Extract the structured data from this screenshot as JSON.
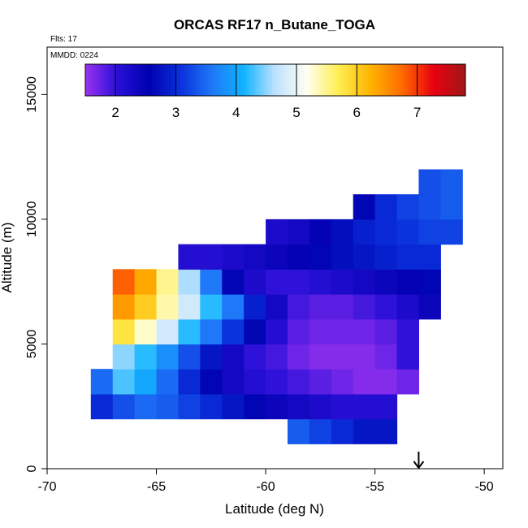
{
  "chart_data": {
    "type": "heatmap",
    "title": "ORCAS RF17 n_Butane_TOGA",
    "annotations": [
      "Flts: 17",
      "MMDD: 0224"
    ],
    "x_label": "Latitude (deg N)",
    "y_label": "Altitude (m)",
    "xlim": [
      -70,
      -49.15
    ],
    "ylim": [
      0,
      16900
    ],
    "xticks": [
      -70,
      -65,
      -60,
      -55,
      -50
    ],
    "yticks": [
      0,
      5000,
      10000,
      15000
    ],
    "x": [
      -67.5,
      -66.5,
      -65.5,
      -64.5,
      -63.5,
      -62.5,
      -61.5,
      -60.5,
      -59.5,
      -58.5,
      -57.5,
      -56.5,
      -55.5,
      -54.5,
      -53.5,
      -52.5,
      -51.5
    ],
    "y": [
      1500,
      2500,
      3500,
      4500,
      5500,
      6500,
      7500,
      8500,
      9500,
      10500,
      11500
    ],
    "z": [
      [
        null,
        null,
        null,
        null,
        null,
        null,
        null,
        null,
        null,
        3.4,
        3.2,
        3.0,
        2.8,
        2.8,
        null,
        null,
        null
      ],
      [
        3.0,
        3.3,
        3.5,
        3.4,
        3.2,
        3.0,
        2.8,
        2.6,
        2.4,
        2.3,
        2.2,
        2.1,
        2.1,
        2.1,
        null,
        null,
        null
      ],
      [
        3.5,
        4.3,
        4.0,
        3.5,
        3.0,
        2.6,
        2.3,
        2.1,
        2.0,
        1.9,
        1.8,
        1.7,
        1.6,
        1.6,
        1.7,
        null,
        null
      ],
      [
        null,
        4.5,
        4.2,
        3.8,
        3.3,
        2.8,
        2.3,
        2.0,
        1.9,
        1.7,
        1.6,
        1.6,
        1.6,
        1.7,
        2.0,
        null,
        null
      ],
      [
        null,
        5.8,
        5.3,
        4.8,
        4.2,
        3.6,
        3.1,
        2.6,
        2.1,
        1.8,
        1.7,
        1.7,
        1.7,
        1.8,
        2.0,
        null,
        null
      ],
      [
        null,
        6.4,
        6.0,
        5.4,
        4.8,
        4.2,
        3.6,
        2.9,
        2.3,
        1.9,
        1.8,
        1.8,
        1.9,
        2.0,
        2.2,
        2.4,
        null
      ],
      [
        null,
        6.8,
        6.3,
        5.5,
        4.6,
        3.6,
        2.6,
        2.2,
        2.0,
        2.0,
        2.1,
        2.2,
        2.3,
        2.4,
        2.5,
        2.6,
        null
      ],
      [
        null,
        null,
        null,
        null,
        2.1,
        2.1,
        2.2,
        2.3,
        2.4,
        2.5,
        2.6,
        2.7,
        2.8,
        2.9,
        3.0,
        3.0,
        null
      ],
      [
        null,
        null,
        null,
        null,
        null,
        null,
        null,
        null,
        2.2,
        2.3,
        2.5,
        2.7,
        2.9,
        3.0,
        3.1,
        3.2,
        3.2
      ],
      [
        null,
        null,
        null,
        null,
        null,
        null,
        null,
        null,
        null,
        null,
        null,
        null,
        2.6,
        3.0,
        3.2,
        3.3,
        3.4
      ],
      [
        null,
        null,
        null,
        null,
        null,
        null,
        null,
        null,
        null,
        null,
        null,
        null,
        null,
        null,
        null,
        3.3,
        3.4
      ]
    ],
    "zlim": [
      1.5,
      7.8
    ],
    "colorbar_ticks": [
      2,
      3,
      4,
      5,
      6,
      7
    ],
    "colormap": [
      "#9a32f0",
      "#2a10d8",
      "#0000b0",
      "#0a30dc",
      "#1e78f8",
      "#10b4ff",
      "#bfe2ff",
      "#fffff0",
      "#ffee50",
      "#ffb400",
      "#ff6a00",
      "#e80010",
      "#a01818"
    ],
    "marker_lat": -53
  }
}
